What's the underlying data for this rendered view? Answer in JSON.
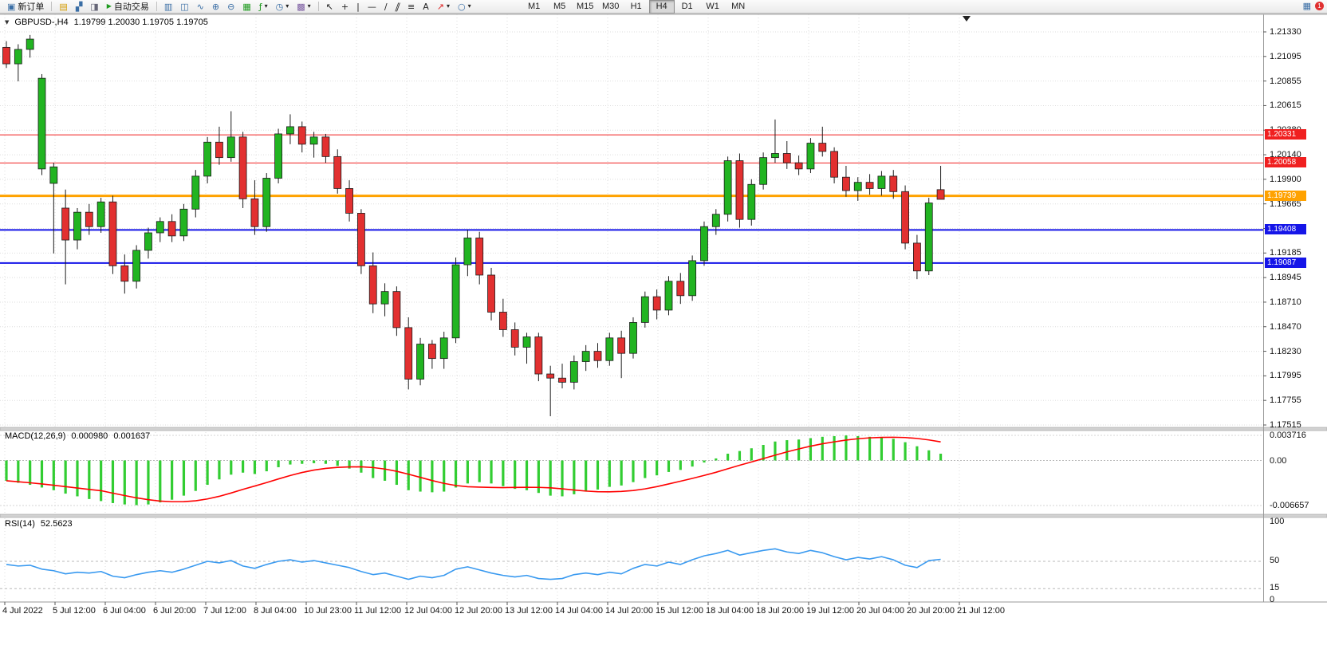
{
  "toolbar": {
    "new_order_label": "新订单",
    "auto_trading_label": "自动交易",
    "timeframes": [
      "M1",
      "M5",
      "M15",
      "M30",
      "H1",
      "H4",
      "D1",
      "W1",
      "MN"
    ],
    "active_timeframe": "H4",
    "notification_count": "1"
  },
  "icons": {
    "symbol_dropdown": "▼",
    "new_order_icon": "▣",
    "chart_window_icon": "▤",
    "profiles_icon": "▞",
    "data_window_icon": "◨",
    "play_icon": "▶",
    "bar_chart_icon": "▥",
    "candle_chart_icon": "◫",
    "line_chart_icon": "∿",
    "zoom_in_icon": "⊕",
    "zoom_out_icon": "⊖",
    "tile_windows_icon": "▦",
    "indicators_icon": "ƒ",
    "periods_icon": "◷",
    "template_icon": "▩",
    "cursor_icon": "↖",
    "crosshair_icon": "+",
    "vline_icon": "|",
    "hline_icon": "—",
    "trendline_icon": "∕",
    "channel_icon": "∥",
    "fibo_icon": "≡",
    "text_icon": "A",
    "arrows_icon": "↗",
    "shapes_icon": "○",
    "caret": "▾",
    "shift_marker": "▼",
    "grid_icon": "▦"
  },
  "chart": {
    "symbol_header": "GBPUSD-,H4",
    "ohlc_display": "1.19799 1.20030 1.19705 1.19705",
    "y_ticks": [
      "1.21330",
      "1.21095",
      "1.20855",
      "1.20615",
      "1.20380",
      "1.20140",
      "1.19900",
      "1.19665",
      "1.19425",
      "1.19185",
      "1.18945",
      "1.18710",
      "1.18470",
      "1.18230",
      "1.17995",
      "1.17755",
      "1.17515"
    ],
    "x_labels": [
      "4 Jul 2022",
      "5 Jul 12:00",
      "6 Jul 04:00",
      "6 Jul 20:00",
      "7 Jul 12:00",
      "8 Jul 04:00",
      "10 Jul 23:00",
      "11 Jul 12:00",
      "12 Jul 04:00",
      "12 Jul 20:00",
      "13 Jul 12:00",
      "14 Jul 04:00",
      "14 Jul 20:00",
      "15 Jul 12:00",
      "18 Jul 04:00",
      "18 Jul 20:00",
      "19 Jul 12:00",
      "20 Jul 04:00",
      "20 Jul 20:00",
      "21 Jul 12:00"
    ],
    "levels": [
      {
        "label": "1.20331",
        "price": 1.20331,
        "color": "#f02020",
        "thickness": 1
      },
      {
        "label": "1.20058",
        "price": 1.20058,
        "color": "#f02020",
        "thickness": 1
      },
      {
        "label": "1.19739",
        "price": 1.19739,
        "color": "#ffa200",
        "thickness": 3
      },
      {
        "label": "1.19408",
        "price": 1.19408,
        "color": "#1515e8",
        "thickness": 2
      },
      {
        "label": "1.19087",
        "price": 1.19087,
        "color": "#1515e8",
        "thickness": 2
      }
    ]
  },
  "macd_panel": {
    "title": "MACD(12,26,9)",
    "main_value": "0.000980",
    "signal_value": "0.001637",
    "scale_labels": [
      "0.003716",
      "0.00",
      "-0.006657"
    ]
  },
  "rsi_panel": {
    "title": "RSI(14)",
    "value": "52.5623",
    "scale_labels": [
      "100",
      "50",
      "15",
      "0"
    ]
  },
  "chart_data": [
    {
      "type": "candlestick",
      "name": "GBPUSD- H4",
      "ylim": [
        1.17515,
        1.2133
      ],
      "ohlc": [
        [
          1.2118,
          1.2124,
          1.2098,
          1.2102
        ],
        [
          1.2102,
          1.2121,
          1.2085,
          1.2116
        ],
        [
          1.2116,
          1.213,
          1.2108,
          1.2126
        ],
        [
          1.2,
          1.2092,
          1.1994,
          1.2088
        ],
        [
          1.1986,
          1.2006,
          1.1918,
          1.2002
        ],
        [
          1.1962,
          1.198,
          1.1888,
          1.1931
        ],
        [
          1.1931,
          1.1962,
          1.1922,
          1.1958
        ],
        [
          1.1958,
          1.1966,
          1.1936,
          1.1944
        ],
        [
          1.1944,
          1.1972,
          1.1938,
          1.1968
        ],
        [
          1.1968,
          1.1974,
          1.1898,
          1.1906
        ],
        [
          1.1906,
          1.1917,
          1.1879,
          1.1891
        ],
        [
          1.1891,
          1.1926,
          1.1884,
          1.1921
        ],
        [
          1.1921,
          1.1943,
          1.1913,
          1.1938
        ],
        [
          1.1938,
          1.1953,
          1.1929,
          1.1949
        ],
        [
          1.1949,
          1.1956,
          1.1929,
          1.1935
        ],
        [
          1.1935,
          1.1966,
          1.193,
          1.1961
        ],
        [
          1.1961,
          1.1999,
          1.1953,
          1.1993
        ],
        [
          1.1993,
          1.2031,
          1.1986,
          1.2026
        ],
        [
          1.2026,
          1.2041,
          1.2004,
          1.2011
        ],
        [
          1.2011,
          1.2056,
          1.2007,
          1.2031
        ],
        [
          1.2031,
          1.2036,
          1.1962,
          1.1971
        ],
        [
          1.1971,
          1.1989,
          1.1936,
          1.1944
        ],
        [
          1.1944,
          1.1996,
          1.1939,
          1.1991
        ],
        [
          1.1991,
          1.2039,
          1.1986,
          1.2034
        ],
        [
          1.2034,
          1.2053,
          1.2024,
          1.2041
        ],
        [
          1.2041,
          1.2046,
          1.2016,
          1.2024
        ],
        [
          1.2024,
          1.2036,
          1.2011,
          1.2031
        ],
        [
          1.2031,
          1.2034,
          1.2006,
          1.2012
        ],
        [
          1.2012,
          1.2019,
          1.1976,
          1.1981
        ],
        [
          1.1981,
          1.1989,
          1.1949,
          1.1957
        ],
        [
          1.1957,
          1.1961,
          1.1898,
          1.1906
        ],
        [
          1.1906,
          1.1919,
          1.186,
          1.1869
        ],
        [
          1.1869,
          1.1889,
          1.1857,
          1.1881
        ],
        [
          1.1881,
          1.1886,
          1.1838,
          1.1846
        ],
        [
          1.1846,
          1.1856,
          1.1786,
          1.1796
        ],
        [
          1.1796,
          1.1836,
          1.179,
          1.183
        ],
        [
          1.183,
          1.1834,
          1.1806,
          1.1816
        ],
        [
          1.1816,
          1.1842,
          1.1806,
          1.1836
        ],
        [
          1.1836,
          1.1914,
          1.1831,
          1.1907
        ],
        [
          1.1907,
          1.1941,
          1.1896,
          1.1933
        ],
        [
          1.1933,
          1.1939,
          1.1888,
          1.1897
        ],
        [
          1.1897,
          1.1904,
          1.1853,
          1.1861
        ],
        [
          1.1861,
          1.1874,
          1.1837,
          1.1844
        ],
        [
          1.1844,
          1.1851,
          1.1819,
          1.1827
        ],
        [
          1.1827,
          1.1841,
          1.1811,
          1.1837
        ],
        [
          1.1837,
          1.1841,
          1.1794,
          1.1801
        ],
        [
          1.1801,
          1.1809,
          1.176,
          1.1797
        ],
        [
          1.1797,
          1.1811,
          1.1787,
          1.1793
        ],
        [
          1.1793,
          1.1819,
          1.1786,
          1.1813
        ],
        [
          1.1813,
          1.1829,
          1.1804,
          1.1823
        ],
        [
          1.1823,
          1.1831,
          1.1807,
          1.1814
        ],
        [
          1.1814,
          1.1841,
          1.1809,
          1.1836
        ],
        [
          1.1836,
          1.1843,
          1.1797,
          1.1821
        ],
        [
          1.1821,
          1.1856,
          1.1816,
          1.1851
        ],
        [
          1.1851,
          1.1881,
          1.1846,
          1.1876
        ],
        [
          1.1876,
          1.1883,
          1.1854,
          1.1863
        ],
        [
          1.1863,
          1.1896,
          1.1858,
          1.1891
        ],
        [
          1.1891,
          1.1899,
          1.1869,
          1.1877
        ],
        [
          1.1877,
          1.1916,
          1.1872,
          1.1911
        ],
        [
          1.1911,
          1.1949,
          1.1906,
          1.1944
        ],
        [
          1.1944,
          1.1961,
          1.1936,
          1.1956
        ],
        [
          1.1956,
          1.2012,
          1.1949,
          1.2008
        ],
        [
          1.2008,
          1.2015,
          1.1943,
          1.1951
        ],
        [
          1.1951,
          1.199,
          1.1945,
          1.1985
        ],
        [
          1.1985,
          1.2016,
          1.198,
          1.2011
        ],
        [
          1.2011,
          1.2048,
          1.2006,
          1.2015
        ],
        [
          1.2015,
          1.2027,
          1.2,
          1.2006
        ],
        [
          1.2006,
          1.2013,
          1.1994,
          1.2
        ],
        [
          1.2,
          1.203,
          1.1996,
          1.2025
        ],
        [
          1.2025,
          1.2041,
          1.2012,
          1.2017
        ],
        [
          1.2017,
          1.2021,
          1.1986,
          1.1992
        ],
        [
          1.1992,
          1.2003,
          1.1973,
          1.1979
        ],
        [
          1.1979,
          1.1992,
          1.1969,
          1.1987
        ],
        [
          1.1987,
          1.1995,
          1.1975,
          1.1981
        ],
        [
          1.1981,
          1.1998,
          1.1974,
          1.1993
        ],
        [
          1.1993,
          1.1999,
          1.1971,
          1.1978
        ],
        [
          1.1978,
          1.1984,
          1.1922,
          1.1928
        ],
        [
          1.1928,
          1.1936,
          1.1893,
          1.1901
        ],
        [
          1.1901,
          1.1972,
          1.1897,
          1.1967
        ],
        [
          1.19799,
          1.2003,
          1.19705,
          1.19705
        ]
      ]
    },
    {
      "type": "bar",
      "name": "MACD(12,26,9) histogram",
      "ylim": [
        -0.006657,
        0.003716
      ],
      "values": [
        -0.003,
        -0.0033,
        -0.0036,
        -0.004,
        -0.0044,
        -0.0049,
        -0.0053,
        -0.0057,
        -0.006,
        -0.0063,
        -0.0065,
        -0.0066,
        -0.0065,
        -0.0062,
        -0.0058,
        -0.0052,
        -0.0045,
        -0.0036,
        -0.0028,
        -0.0021,
        -0.0018,
        -0.002,
        -0.0016,
        -0.001,
        -0.0006,
        -0.0005,
        -0.0004,
        -0.0005,
        -0.0008,
        -0.0012,
        -0.0018,
        -0.0026,
        -0.003,
        -0.0036,
        -0.0044,
        -0.0046,
        -0.0047,
        -0.0046,
        -0.004,
        -0.0034,
        -0.0032,
        -0.0034,
        -0.0038,
        -0.0042,
        -0.0044,
        -0.0048,
        -0.0052,
        -0.0053,
        -0.005,
        -0.0046,
        -0.0043,
        -0.0039,
        -0.0037,
        -0.0032,
        -0.0026,
        -0.0022,
        -0.0017,
        -0.0014,
        -0.0009,
        -0.0003,
        0.0003,
        0.001,
        0.0014,
        0.0018,
        0.0023,
        0.0028,
        0.003,
        0.0031,
        0.0033,
        0.0035,
        0.0036,
        0.0037,
        0.0036,
        0.0035,
        0.0034,
        0.0032,
        0.0027,
        0.0021,
        0.0015,
        0.001
      ]
    },
    {
      "type": "line",
      "name": "RSI(14)",
      "ylim": [
        0,
        100
      ],
      "levels": [
        50,
        15
      ],
      "values": [
        46,
        44,
        45,
        40,
        38,
        34,
        36,
        35,
        37,
        31,
        29,
        33,
        36,
        38,
        36,
        40,
        45,
        50,
        48,
        51,
        44,
        41,
        46,
        50,
        52,
        49,
        51,
        48,
        45,
        42,
        37,
        33,
        35,
        31,
        27,
        31,
        29,
        32,
        40,
        43,
        39,
        35,
        32,
        30,
        32,
        28,
        27,
        28,
        33,
        35,
        33,
        36,
        34,
        41,
        46,
        44,
        49,
        46,
        52,
        57,
        60,
        64,
        58,
        61,
        64,
        66,
        62,
        60,
        64,
        61,
        56,
        52,
        55,
        53,
        56,
        52,
        45,
        42,
        51,
        52.56
      ]
    }
  ],
  "colors": {
    "up": "#21b421",
    "down": "#e23030",
    "candle_border": "#1c1c1c",
    "macd_hist": "#32cd32",
    "macd_signal": "#ff0000",
    "rsi_line": "#3a9af0",
    "grid": "#dedede",
    "frame": "#9a9a9a",
    "separator_fill": "#d2d2d2"
  }
}
